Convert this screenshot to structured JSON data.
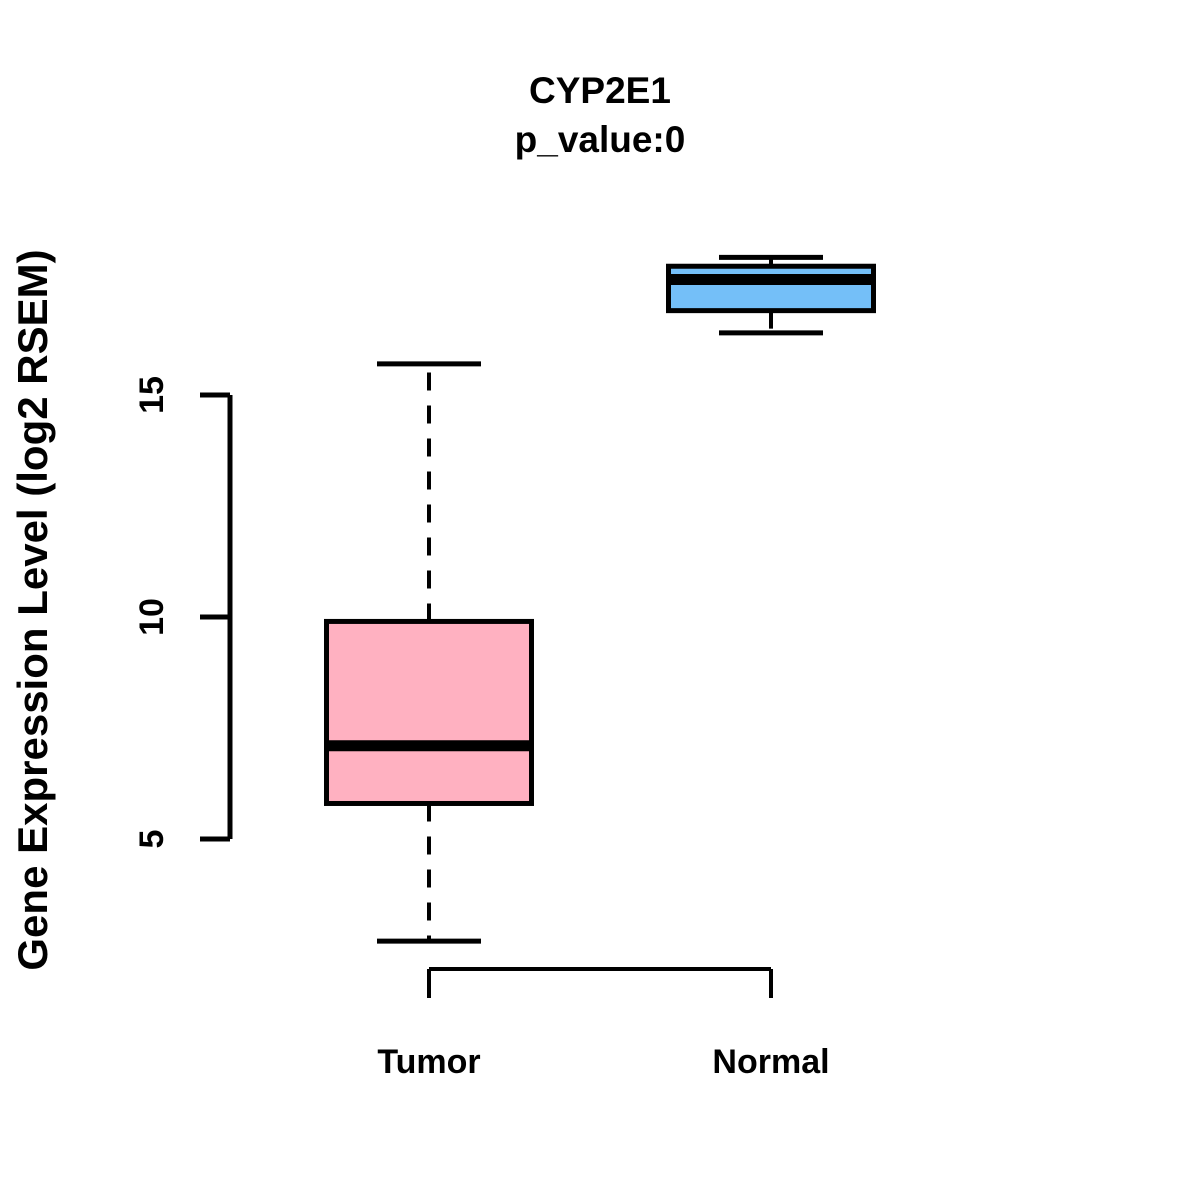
{
  "figure": {
    "background": "#ffffff",
    "title": "CYP2E1",
    "subtitle": "p_value:0"
  },
  "chart_data": {
    "type": "boxplot",
    "title": "CYP2E1",
    "subtitle": "p_value:0",
    "xlabel": "",
    "ylabel": "Gene Expression Level (log2 RSEM)",
    "ylim": [
      2.5,
      18.5
    ],
    "yticks": [
      5,
      10,
      15
    ],
    "grid": false,
    "legend": "none",
    "categories": [
      "Tumor",
      "Normal"
    ],
    "series": [
      {
        "name": "Tumor",
        "fill_color": "#FFB1C1",
        "whisker_low": 2.7,
        "q1": 5.8,
        "median": 7.1,
        "q3": 9.9,
        "whisker_high": 15.7,
        "whisker_line": "dashed"
      },
      {
        "name": "Normal",
        "fill_color": "#74BFF8",
        "whisker_low": 16.4,
        "q1": 16.9,
        "median": 17.6,
        "q3": 17.9,
        "whisker_high": 18.1,
        "whisker_line": "dashed"
      }
    ],
    "box_border_color": "#000000",
    "median_color": "#000000",
    "axis_color": "#000000"
  }
}
